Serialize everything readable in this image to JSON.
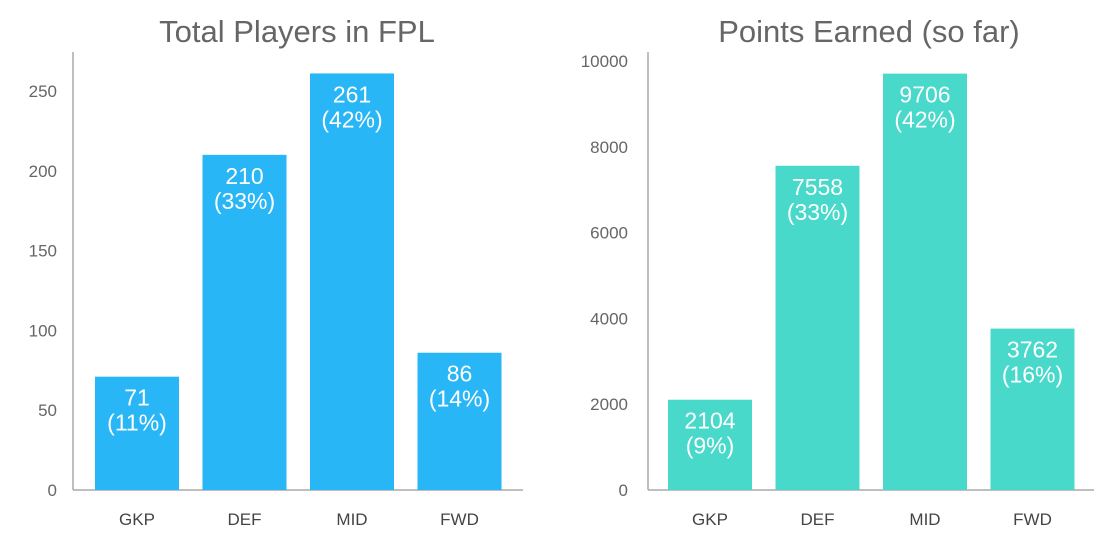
{
  "colors": {
    "players": "#29B6F6",
    "points": "#48D9CB"
  },
  "chart_data": [
    {
      "type": "bar",
      "title": "Total Players in FPL",
      "categories": [
        "GKP",
        "DEF",
        "MID",
        "FWD"
      ],
      "values": [
        71,
        210,
        261,
        86
      ],
      "data_labels": [
        [
          "71",
          "(11%)"
        ],
        [
          "210",
          "(33%)"
        ],
        [
          "261",
          "(42%)"
        ],
        [
          "86",
          "(14%)"
        ]
      ],
      "yticks": [
        0,
        50,
        100,
        150,
        200,
        250
      ],
      "ytick_labels": [
        "0",
        "50",
        "100",
        "150",
        "200",
        "250"
      ],
      "ylim": [
        0,
        275
      ],
      "xlabel": "",
      "ylabel": "",
      "grid": false,
      "color": "#29B6F6"
    },
    {
      "type": "bar",
      "title": "Points Earned (so far)",
      "categories": [
        "GKP",
        "DEF",
        "MID",
        "FWD"
      ],
      "values": [
        2104,
        7558,
        9706,
        3762
      ],
      "data_labels": [
        [
          "2104",
          "(9%)"
        ],
        [
          "7558",
          "(33%)"
        ],
        [
          "9706",
          "(42%)"
        ],
        [
          "3762",
          "(16%)"
        ]
      ],
      "yticks": [
        0,
        2000,
        4000,
        6000,
        8000,
        10000
      ],
      "ytick_labels": [
        "0",
        "2000",
        "4000",
        "6000",
        "8000",
        "10000"
      ],
      "ylim": [
        0,
        10300
      ],
      "xlabel": "",
      "ylabel": "",
      "grid": false,
      "color": "#48D9CB"
    }
  ]
}
